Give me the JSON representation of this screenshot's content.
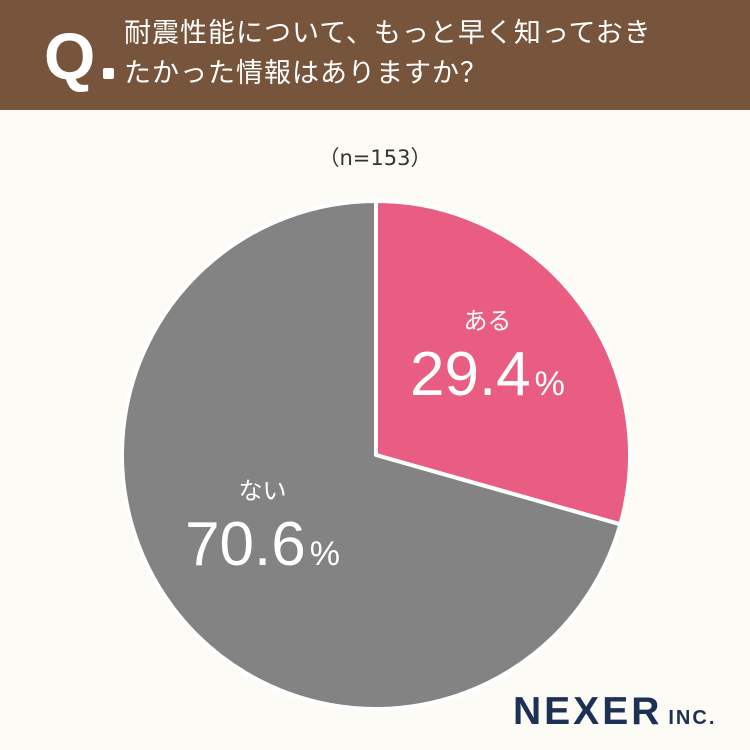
{
  "header": {
    "q_mark": "Q",
    "question_line1": "耐震性能について、もっと早く知っておき",
    "question_line2": "たかった情報はありますか？"
  },
  "sample_size": "（n=153）",
  "chart_data": {
    "type": "pie",
    "start_angle_deg": 0,
    "direction": "clockwise",
    "slices": [
      {
        "label": "ある",
        "value": 29.4,
        "value_text": "29.4",
        "unit": "%",
        "color": "#e85d81"
      },
      {
        "label": "ない",
        "value": 70.6,
        "value_text": "70.6",
        "unit": "%",
        "color": "#838383"
      }
    ]
  },
  "logo": {
    "main": "NEXER",
    "sub": "INC."
  },
  "colors": {
    "header_bg": "#76553c",
    "page_bg": "#fcfbf6",
    "logo": "#1e3155"
  }
}
